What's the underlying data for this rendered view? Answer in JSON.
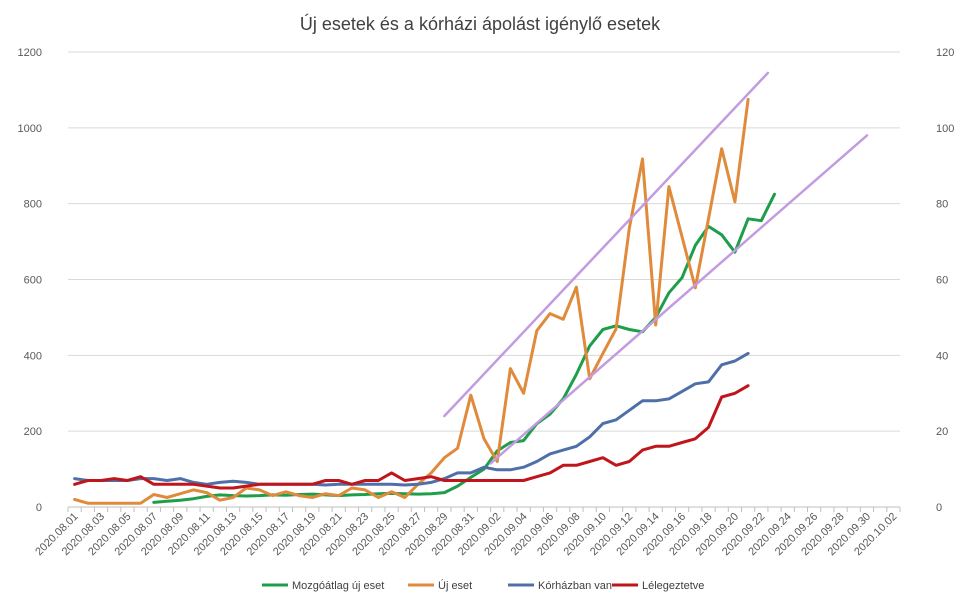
{
  "chart_data": {
    "type": "line",
    "title": "Új esetek és a kórházi ápolást igénylő esetek",
    "x_categories": [
      "2020.08.01",
      "2020.08.02",
      "2020.08.03",
      "2020.08.04",
      "2020.08.05",
      "2020.08.06",
      "2020.08.07",
      "2020.08.08",
      "2020.08.09",
      "2020.08.10",
      "2020.08.11",
      "2020.08.12",
      "2020.08.13",
      "2020.08.14",
      "2020.08.15",
      "2020.08.16",
      "2020.08.17",
      "2020.08.18",
      "2020.08.19",
      "2020.08.20",
      "2020.08.21",
      "2020.08.22",
      "2020.08.23",
      "2020.08.24",
      "2020.08.25",
      "2020.08.26",
      "2020.08.27",
      "2020.08.28",
      "2020.08.29",
      "2020.08.30",
      "2020.08.31",
      "2020.09.01",
      "2020.09.02",
      "2020.09.03",
      "2020.09.04",
      "2020.09.05",
      "2020.09.06",
      "2020.09.07",
      "2020.09.08",
      "2020.09.09",
      "2020.09.10",
      "2020.09.11",
      "2020.09.12",
      "2020.09.13",
      "2020.09.14",
      "2020.09.15",
      "2020.09.16",
      "2020.09.17",
      "2020.09.18",
      "2020.09.19",
      "2020.09.20",
      "2020.09.21",
      "2020.09.22",
      "2020.09.23",
      "2020.09.24",
      "2020.09.25",
      "2020.09.26",
      "2020.09.27",
      "2020.09.28",
      "2020.09.29",
      "2020.09.30",
      "2020.10.01",
      "2020.10.02"
    ],
    "x_tick_labels": [
      "2020.08.01",
      "2020.08.03",
      "2020.08.05",
      "2020.08.07",
      "2020.08.09",
      "2020.08.11",
      "2020.08.13",
      "2020.08.15",
      "2020.08.17",
      "2020.08.19",
      "2020.08.21",
      "2020.08.23",
      "2020.08.25",
      "2020.08.27",
      "2020.08.29",
      "2020.08.31",
      "2020.09.02",
      "2020.09.04",
      "2020.09.06",
      "2020.09.08",
      "2020.09.10",
      "2020.09.12",
      "2020.09.14",
      "2020.09.16",
      "2020.09.18",
      "2020.09.20",
      "2020.09.22",
      "2020.09.24",
      "2020.09.26",
      "2020.09.28",
      "2020.09.30",
      "2020.10.02"
    ],
    "y_left": {
      "min": 0,
      "max": 1200,
      "ticks": [
        0,
        200,
        400,
        600,
        800,
        1000,
        1200
      ]
    },
    "y_right": {
      "min": 0,
      "max": 120,
      "ticks": [
        0,
        20,
        40,
        60,
        80,
        100,
        120
      ]
    },
    "grid": true,
    "legend_position": "bottom",
    "series": [
      {
        "name": "Mozgóátlag új eset",
        "color": "#1f9e4a",
        "axis": "left",
        "start_index": 6,
        "values": [
          12,
          15,
          18,
          22,
          28,
          32,
          30,
          29,
          30,
          32,
          31,
          33,
          34,
          32,
          30,
          32,
          33,
          35,
          36,
          35,
          34,
          35,
          38,
          55,
          78,
          100,
          148,
          170,
          175,
          220,
          245,
          285,
          350,
          425,
          468,
          478,
          468,
          462,
          500,
          565,
          605,
          690,
          740,
          718,
          672,
          760,
          755,
          825
        ]
      },
      {
        "name": "Új eset",
        "color": "#e08a3c",
        "axis": "left",
        "start_index": 0,
        "values": [
          20,
          10,
          10,
          10,
          10,
          10,
          33,
          25,
          35,
          45,
          38,
          18,
          25,
          50,
          45,
          30,
          40,
          30,
          25,
          35,
          30,
          50,
          45,
          25,
          40,
          25,
          60,
          90,
          130,
          155,
          295,
          180,
          120,
          365,
          300,
          465,
          510,
          495,
          580,
          338,
          405,
          470,
          735,
          918,
          480,
          845,
          712,
          578,
          760,
          945,
          805,
          1075
        ]
      },
      {
        "name": "Kórházban van",
        "color": "#4f6fa8",
        "axis": "right",
        "start_index": 0,
        "values": [
          7.5,
          7,
          7,
          7,
          7,
          7.5,
          7.5,
          7,
          7.5,
          6.5,
          6,
          6.5,
          6.8,
          6.5,
          6,
          6,
          6,
          6,
          6,
          5.8,
          6,
          6,
          6,
          6,
          6,
          5.8,
          6,
          6.5,
          7.5,
          9,
          9,
          10.5,
          9.8,
          9.8,
          10.5,
          12,
          14,
          15,
          16,
          18.5,
          22,
          23,
          25.5,
          28,
          28,
          28.5,
          30.5,
          32.5,
          33,
          37.5,
          38.5,
          40.5
        ]
      },
      {
        "name": "Lélegeztetve",
        "color": "#c0151b",
        "axis": "right",
        "start_index": 0,
        "values": [
          6,
          7,
          7,
          7.5,
          7,
          8,
          6,
          6,
          6,
          6,
          5.5,
          5,
          5,
          5.5,
          6,
          6,
          6,
          6,
          6,
          7,
          7,
          6,
          7,
          7,
          9,
          7,
          7.5,
          8,
          7,
          7,
          7,
          7,
          7,
          7,
          7,
          8,
          9,
          11,
          11,
          12,
          13,
          11,
          12,
          15,
          16,
          16,
          17,
          18,
          21,
          29,
          30,
          32
        ]
      },
      {
        "name": "",
        "color": "#c39be0",
        "axis": "left",
        "start_index": 0,
        "trendline": true,
        "points": [
          [
            28,
            240
          ],
          [
            52.5,
            1145
          ]
        ]
      },
      {
        "name": "",
        "color": "#c39be0",
        "axis": "left",
        "start_index": 0,
        "trendline": true,
        "points": [
          [
            31.5,
            115
          ],
          [
            60,
            980
          ]
        ]
      }
    ]
  }
}
